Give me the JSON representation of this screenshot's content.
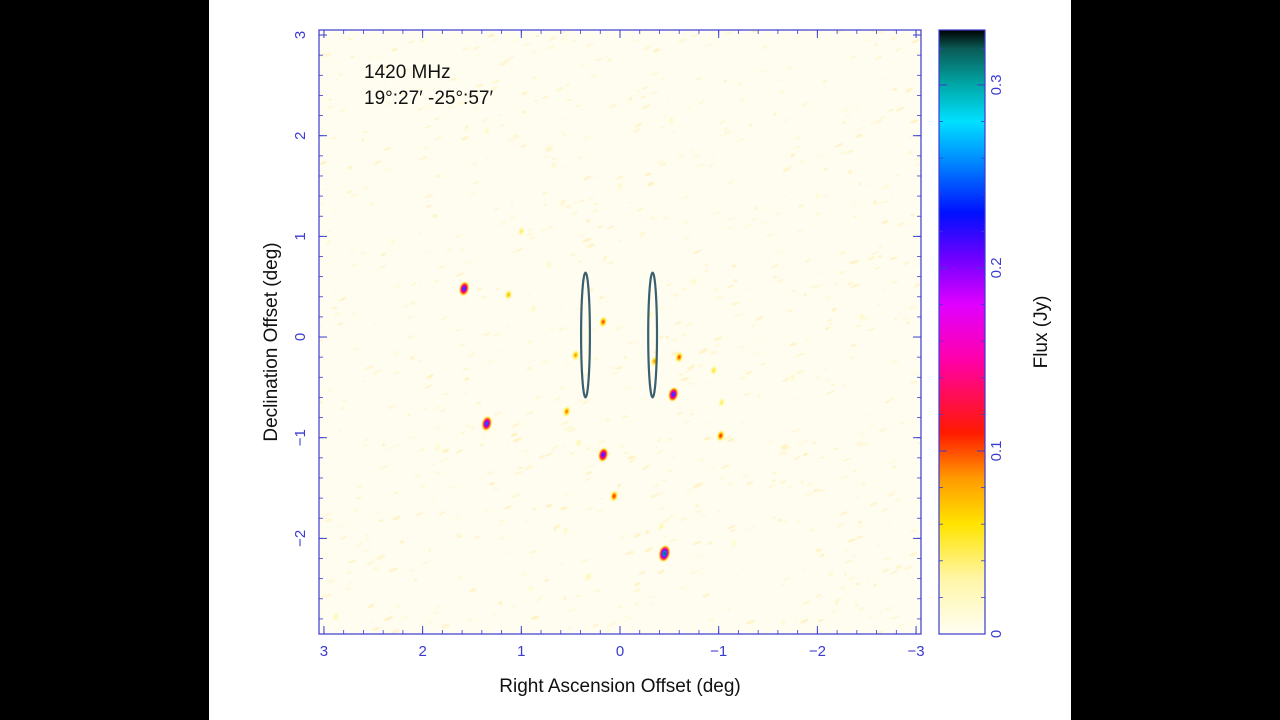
{
  "chart_data": {
    "type": "heatmap",
    "title": "",
    "annotation": {
      "frequency": "1420 MHz",
      "coordinates": "19°:27′ -25°:57′"
    },
    "xlabel": "Right Ascension Offset (deg)",
    "ylabel": "Declination Offset (deg)",
    "xlim": [
      3.05,
      -3.05
    ],
    "ylim": [
      -2.95,
      3.05
    ],
    "x_ticks": [
      3,
      2,
      1,
      0,
      -1,
      -2,
      -3
    ],
    "x_tick_labels": [
      "3",
      "2",
      "1",
      "0",
      "−1",
      "−2",
      "−3"
    ],
    "y_ticks": [
      -2,
      -1,
      0,
      1,
      2,
      3
    ],
    "y_tick_labels": [
      "−2",
      "−1",
      "0",
      "1",
      "2",
      "3"
    ],
    "colorbar": {
      "label": "Flux (Jy)",
      "range": [
        0,
        0.33
      ],
      "ticks": [
        0,
        0.1,
        0.2,
        0.3
      ],
      "tick_labels": [
        "0",
        "0.1",
        "0.2",
        "0.3"
      ],
      "stops": [
        {
          "v": 0.0,
          "color": "#fffef2"
        },
        {
          "v": 0.03,
          "color": "#fff6a8"
        },
        {
          "v": 0.06,
          "color": "#ffe400"
        },
        {
          "v": 0.085,
          "color": "#ff9a00"
        },
        {
          "v": 0.11,
          "color": "#ff1a00"
        },
        {
          "v": 0.15,
          "color": "#ff00aa"
        },
        {
          "v": 0.18,
          "color": "#e000ff"
        },
        {
          "v": 0.205,
          "color": "#7000ff"
        },
        {
          "v": 0.23,
          "color": "#0010ff"
        },
        {
          "v": 0.26,
          "color": "#0090ff"
        },
        {
          "v": 0.28,
          "color": "#00e0ff"
        },
        {
          "v": 0.3,
          "color": "#00a8a8"
        },
        {
          "v": 0.32,
          "color": "#0a5a55"
        },
        {
          "v": 0.33,
          "color": "#000000"
        }
      ]
    },
    "sources": [
      {
        "ra": 1.58,
        "dec": 0.48,
        "flux": 0.25
      },
      {
        "ra": 1.13,
        "dec": 0.42,
        "flux": 0.08
      },
      {
        "ra": 1.0,
        "dec": 1.05,
        "flux": 0.05
      },
      {
        "ra": 0.88,
        "dec": 0.28,
        "flux": 0.02
      },
      {
        "ra": 1.35,
        "dec": -0.86,
        "flux": 0.26
      },
      {
        "ra": 0.17,
        "dec": 0.15,
        "flux": 0.11
      },
      {
        "ra": 0.45,
        "dec": -0.18,
        "flux": 0.09
      },
      {
        "ra": 0.54,
        "dec": -0.74,
        "flux": 0.1
      },
      {
        "ra": 0.42,
        "dec": -1.05,
        "flux": 0.03
      },
      {
        "ra": 0.17,
        "dec": -1.17,
        "flux": 0.24
      },
      {
        "ra": 0.06,
        "dec": -1.58,
        "flux": 0.12
      },
      {
        "ra": -0.35,
        "dec": -0.24,
        "flux": 0.09
      },
      {
        "ra": -0.6,
        "dec": -0.2,
        "flux": 0.11
      },
      {
        "ra": -0.54,
        "dec": -0.57,
        "flux": 0.25
      },
      {
        "ra": -1.02,
        "dec": -0.98,
        "flux": 0.12
      },
      {
        "ra": -0.95,
        "dec": -0.33,
        "flux": 0.06
      },
      {
        "ra": -1.03,
        "dec": -0.65,
        "flux": 0.05
      },
      {
        "ra": -0.45,
        "dec": -2.15,
        "flux": 0.32
      },
      {
        "ra": -0.42,
        "dec": -1.88,
        "flux": 0.03
      },
      {
        "ra": 0.32,
        "dec": -2.38,
        "flux": 0.03
      },
      {
        "ra": -2.45,
        "dec": 0.2,
        "flux": 0.02
      },
      {
        "ra": 2.88,
        "dec": -2.78,
        "flux": 0.03
      },
      {
        "ra": 1.35,
        "dec": 2.05,
        "flux": 0.02
      },
      {
        "ra": -0.52,
        "dec": 2.15,
        "flux": 0.02
      },
      {
        "ra": -0.3,
        "dec": 0.22,
        "flux": 0.03
      },
      {
        "ra": 0.0,
        "dec": 1.5,
        "flux": 0.02
      },
      {
        "ra": 0.55,
        "dec": -1.92,
        "flux": 0.02
      },
      {
        "ra": -1.15,
        "dec": -2.05,
        "flux": 0.02
      },
      {
        "ra": 1.85,
        "dec": -1.1,
        "flux": 0.02
      },
      {
        "ra": -1.75,
        "dec": -0.4,
        "flux": 0.02
      },
      {
        "ra": 0.72,
        "dec": 0.72,
        "flux": 0.02
      },
      {
        "ra": -0.75,
        "dec": 0.55,
        "flux": 0.02
      },
      {
        "ra": 2.3,
        "dec": 0.95,
        "flux": 0.015
      },
      {
        "ra": -2.0,
        "dec": 1.4,
        "flux": 0.015
      },
      {
        "ra": 0.9,
        "dec": -2.5,
        "flux": 0.015
      }
    ],
    "overlays": [
      {
        "shape": "ellipse",
        "ra": 0.35,
        "dec": 0.02,
        "semi_major_dec": 0.62,
        "semi_minor_ra": 0.045,
        "color": "#3a5f6f"
      },
      {
        "shape": "ellipse",
        "ra": -0.33,
        "dec": 0.02,
        "semi_major_dec": 0.62,
        "semi_minor_ra": 0.045,
        "color": "#3a5f6f"
      }
    ]
  }
}
